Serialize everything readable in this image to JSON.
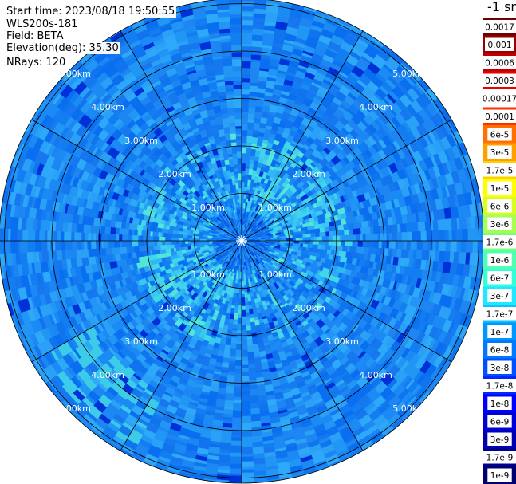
{
  "info": {
    "start_time": "Start time: 2023/08/18 19:50:55",
    "instrument": "WLS200s-181",
    "field": "Field: BETA",
    "elevation": "Elevation(deg): 35.30",
    "nrays": "NRays: 120"
  },
  "chart_data": {
    "type": "heatmap",
    "projection": "polar (PPI scan)",
    "rings_km": [
      1,
      2,
      3,
      4,
      5
    ],
    "ring_labels": [
      "1.00km",
      "2.00km",
      "3.00km",
      "4.00km",
      "5.00km"
    ],
    "spokes_deg": [
      0,
      30,
      60,
      90,
      120,
      150,
      180,
      210,
      240,
      270,
      300,
      330
    ],
    "colorbar": {
      "title": "-1 sr",
      "labels": [
        "0.0017",
        "0.001",
        "0.0006",
        "0.0003",
        "0.00017",
        "0.0001",
        "6e-5",
        "3e-5",
        "1.7e-5",
        "1e-5",
        "6e-6",
        "3e-6",
        "1.7e-6",
        "1e-6",
        "6e-7",
        "3e-7",
        "1.7e-7",
        "1e-7",
        "6e-8",
        "3e-8",
        "1.7e-8",
        "1e-8",
        "6e-9",
        "3e-9",
        "1.7e-9",
        "1e-9"
      ],
      "colors": [
        "#6e0000",
        "#960000",
        "#c00000",
        "#e80000",
        "#ffffff",
        "#ff3000",
        "#ff7000",
        "#ffa000",
        "#ffd000",
        "#ffff00",
        "#d8ff20",
        "#a8ff50",
        "#78ff80",
        "#50ffb0",
        "#30ffd8",
        "#20e8ff",
        "#10c0ff",
        "#0098ff",
        "#0078ff",
        "#0050ff",
        "#0028ff",
        "#0000ff",
        "#0000d8",
        "#0000b0",
        "#000090",
        "#000070"
      ]
    }
  }
}
